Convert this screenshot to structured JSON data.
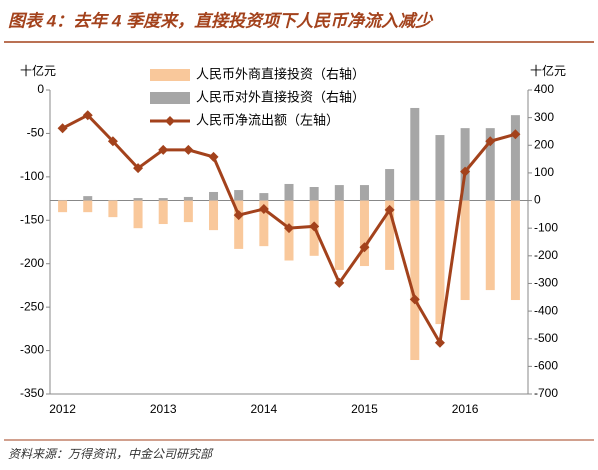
{
  "chart_data": {
    "type": "bar_line",
    "title": "图表 4：去年 4 季度来，直接投资项下人民币净流入减少",
    "source": "资料来源：万得资讯，中金公司研究部",
    "ylabel": "十亿元",
    "y2label": "十亿元",
    "categories": [
      "2012",
      null,
      null,
      null,
      "2013",
      null,
      null,
      null,
      "2014",
      null,
      null,
      null,
      "2015",
      null,
      null,
      null,
      "2016",
      null,
      null
    ],
    "series": [
      {
        "name": "人民币外商直接投资（右轴）",
        "type": "bar",
        "axis": "y2",
        "color": "#f9c89b",
        "values": [
          -42,
          -42,
          -60,
          -100,
          -85,
          -78,
          -107,
          -175,
          -165,
          -217,
          -200,
          -251,
          -237,
          -251,
          -577,
          -447,
          -360,
          -324,
          -360
        ]
      },
      {
        "name": "人民币对外直接投资（右轴）",
        "type": "bar",
        "axis": "y2",
        "color": "#a6a6a6",
        "values": [
          2,
          16,
          2,
          9,
          9,
          13,
          31,
          38,
          27,
          60,
          49,
          56,
          56,
          114,
          335,
          237,
          262,
          262,
          309
        ]
      },
      {
        "name": "人民币净流出额（左轴）",
        "type": "line",
        "axis": "y",
        "color": "#a3421c",
        "values": [
          -44,
          -29,
          -59,
          -90,
          -69,
          -69,
          -77,
          -144,
          -137,
          -159,
          -157,
          -222,
          -181,
          -138,
          -241,
          -291,
          -94,
          -59,
          -51
        ]
      }
    ],
    "ylim": [
      -350,
      0
    ],
    "yticks": [
      0,
      -50,
      -100,
      -150,
      -200,
      -250,
      -300,
      -350
    ],
    "y2lim": [
      -700,
      400
    ],
    "y2ticks": [
      400,
      300,
      200,
      100,
      0,
      -100,
      -200,
      -300,
      -400,
      -500,
      -600,
      -700
    ]
  }
}
